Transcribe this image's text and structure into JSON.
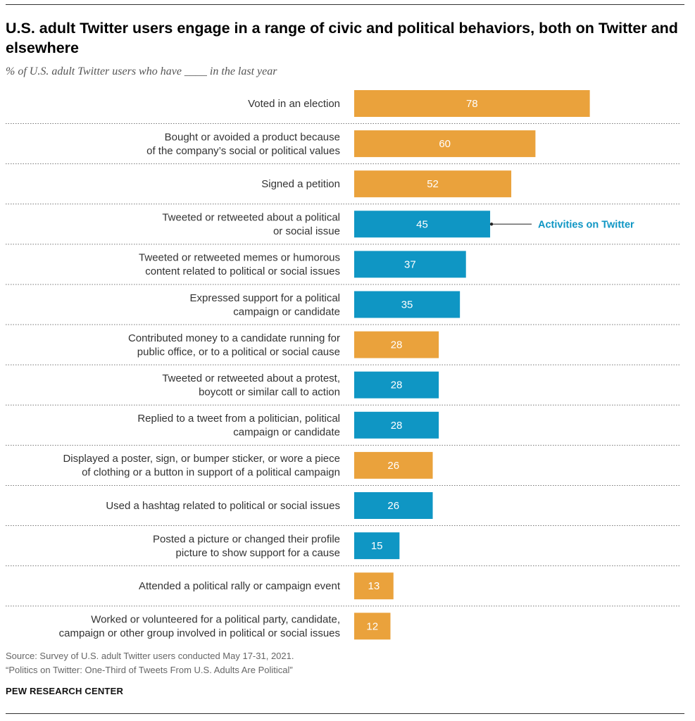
{
  "header": {
    "title": "U.S. adult Twitter users engage in a range of civic and political behaviors, both on Twitter and elsewhere",
    "subtitle": "% of U.S. adult Twitter users who have ____ in the last year"
  },
  "colors": {
    "on_twitter": "#0f96c4",
    "elsewhere": "#eaa23c",
    "label_text": "#ffffff",
    "annotation": "#0f96c4"
  },
  "chart_data": {
    "type": "bar",
    "orientation": "horizontal",
    "xlim": [
      0,
      100
    ],
    "categories": [
      [
        "Voted in an election"
      ],
      [
        "Bought or avoided a product because",
        "of the company’s social or political values"
      ],
      [
        "Signed a petition"
      ],
      [
        "Tweeted or retweeted about a political",
        "or social issue"
      ],
      [
        "Tweeted or retweeted memes or humorous",
        "content related to political or social issues"
      ],
      [
        "Expressed support for a political",
        "campaign or candidate"
      ],
      [
        "Contributed money to a candidate running for",
        "public office, or to a political or social cause"
      ],
      [
        "Tweeted or retweeted about a protest,",
        "boycott or similar call to action"
      ],
      [
        "Replied to a tweet from a politician, political",
        "campaign or candidate"
      ],
      [
        "Displayed a poster, sign, or bumper sticker, or wore a piece",
        "of clothing or a button in support of a political campaign"
      ],
      [
        "Used a hashtag related to political or social issues"
      ],
      [
        "Posted a picture or changed their profile",
        "picture to show support for a cause"
      ],
      [
        "Attended a political rally or campaign event"
      ],
      [
        "Worked or volunteered for a political party, candidate,",
        "campaign or other group involved in political or social issues"
      ]
    ],
    "values": [
      78,
      60,
      52,
      45,
      37,
      35,
      28,
      28,
      28,
      26,
      26,
      15,
      13,
      12
    ],
    "on_twitter": [
      false,
      false,
      false,
      true,
      true,
      true,
      false,
      true,
      true,
      false,
      true,
      true,
      false,
      false
    ],
    "annotation": {
      "label": "Activities on Twitter",
      "bar_index": 3
    },
    "grid": false
  },
  "footer": {
    "source": "Source: Survey of U.S. adult Twitter users conducted May 17-31, 2021.",
    "report": "“Politics on Twitter: One-Third of Tweets From U.S. Adults Are Political”",
    "logo": "PEW RESEARCH CENTER"
  }
}
